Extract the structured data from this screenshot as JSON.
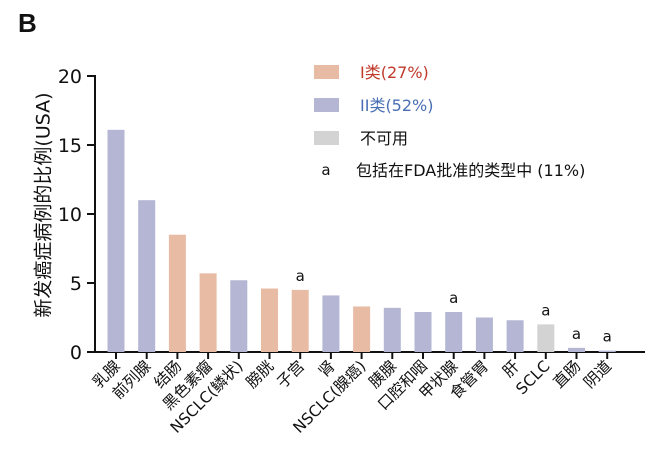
{
  "panel_label": "B",
  "chart_data": {
    "type": "bar",
    "title": "",
    "xlabel": "",
    "ylabel": "新发癌症病例的比例(USA)",
    "ylim": [
      0,
      20
    ],
    "yticks": [
      0,
      5,
      10,
      15,
      20
    ],
    "categories": [
      "乳腺",
      "前列腺",
      "结肠",
      "黑色素瘤",
      "NSCLC(鳞状)",
      "膀胱",
      "子宫",
      "肾",
      "NSCLC(腺癌)",
      "胰腺",
      "口腔和咽",
      "甲状腺",
      "食管胃",
      "肝",
      "SCLC",
      "直肠",
      "阴道"
    ],
    "values": [
      16.1,
      11.0,
      8.5,
      5.7,
      5.2,
      4.6,
      4.5,
      4.1,
      3.3,
      3.2,
      2.9,
      2.9,
      2.5,
      2.3,
      2.0,
      0.3,
      0.1
    ],
    "groups": [
      "II",
      "II",
      "I",
      "I",
      "II",
      "I",
      "I",
      "II",
      "I",
      "II",
      "II",
      "II",
      "II",
      "II",
      "NA",
      "II",
      "II"
    ],
    "annotations": [
      "",
      "",
      "",
      "",
      "",
      "",
      "a",
      "",
      "",
      "",
      "",
      "a",
      "",
      "",
      "a",
      "a",
      "a"
    ],
    "legend": {
      "position": "top-right",
      "entries": [
        {
          "key": "I",
          "label": "I类(27%)",
          "color": "#e8bba5",
          "text_color": "#c0392b"
        },
        {
          "key": "II",
          "label": "II类(52%)",
          "color": "#b4b6d4",
          "text_color": "#4a6fb5"
        },
        {
          "key": "NA",
          "label": "不可用",
          "color": "#d3d3d3",
          "text_color": "#111111"
        },
        {
          "key": "a",
          "marker": "a",
          "label": "包括在FDA批准的类型中 (11%)",
          "text_color": "#111111"
        }
      ]
    },
    "grid": false
  }
}
